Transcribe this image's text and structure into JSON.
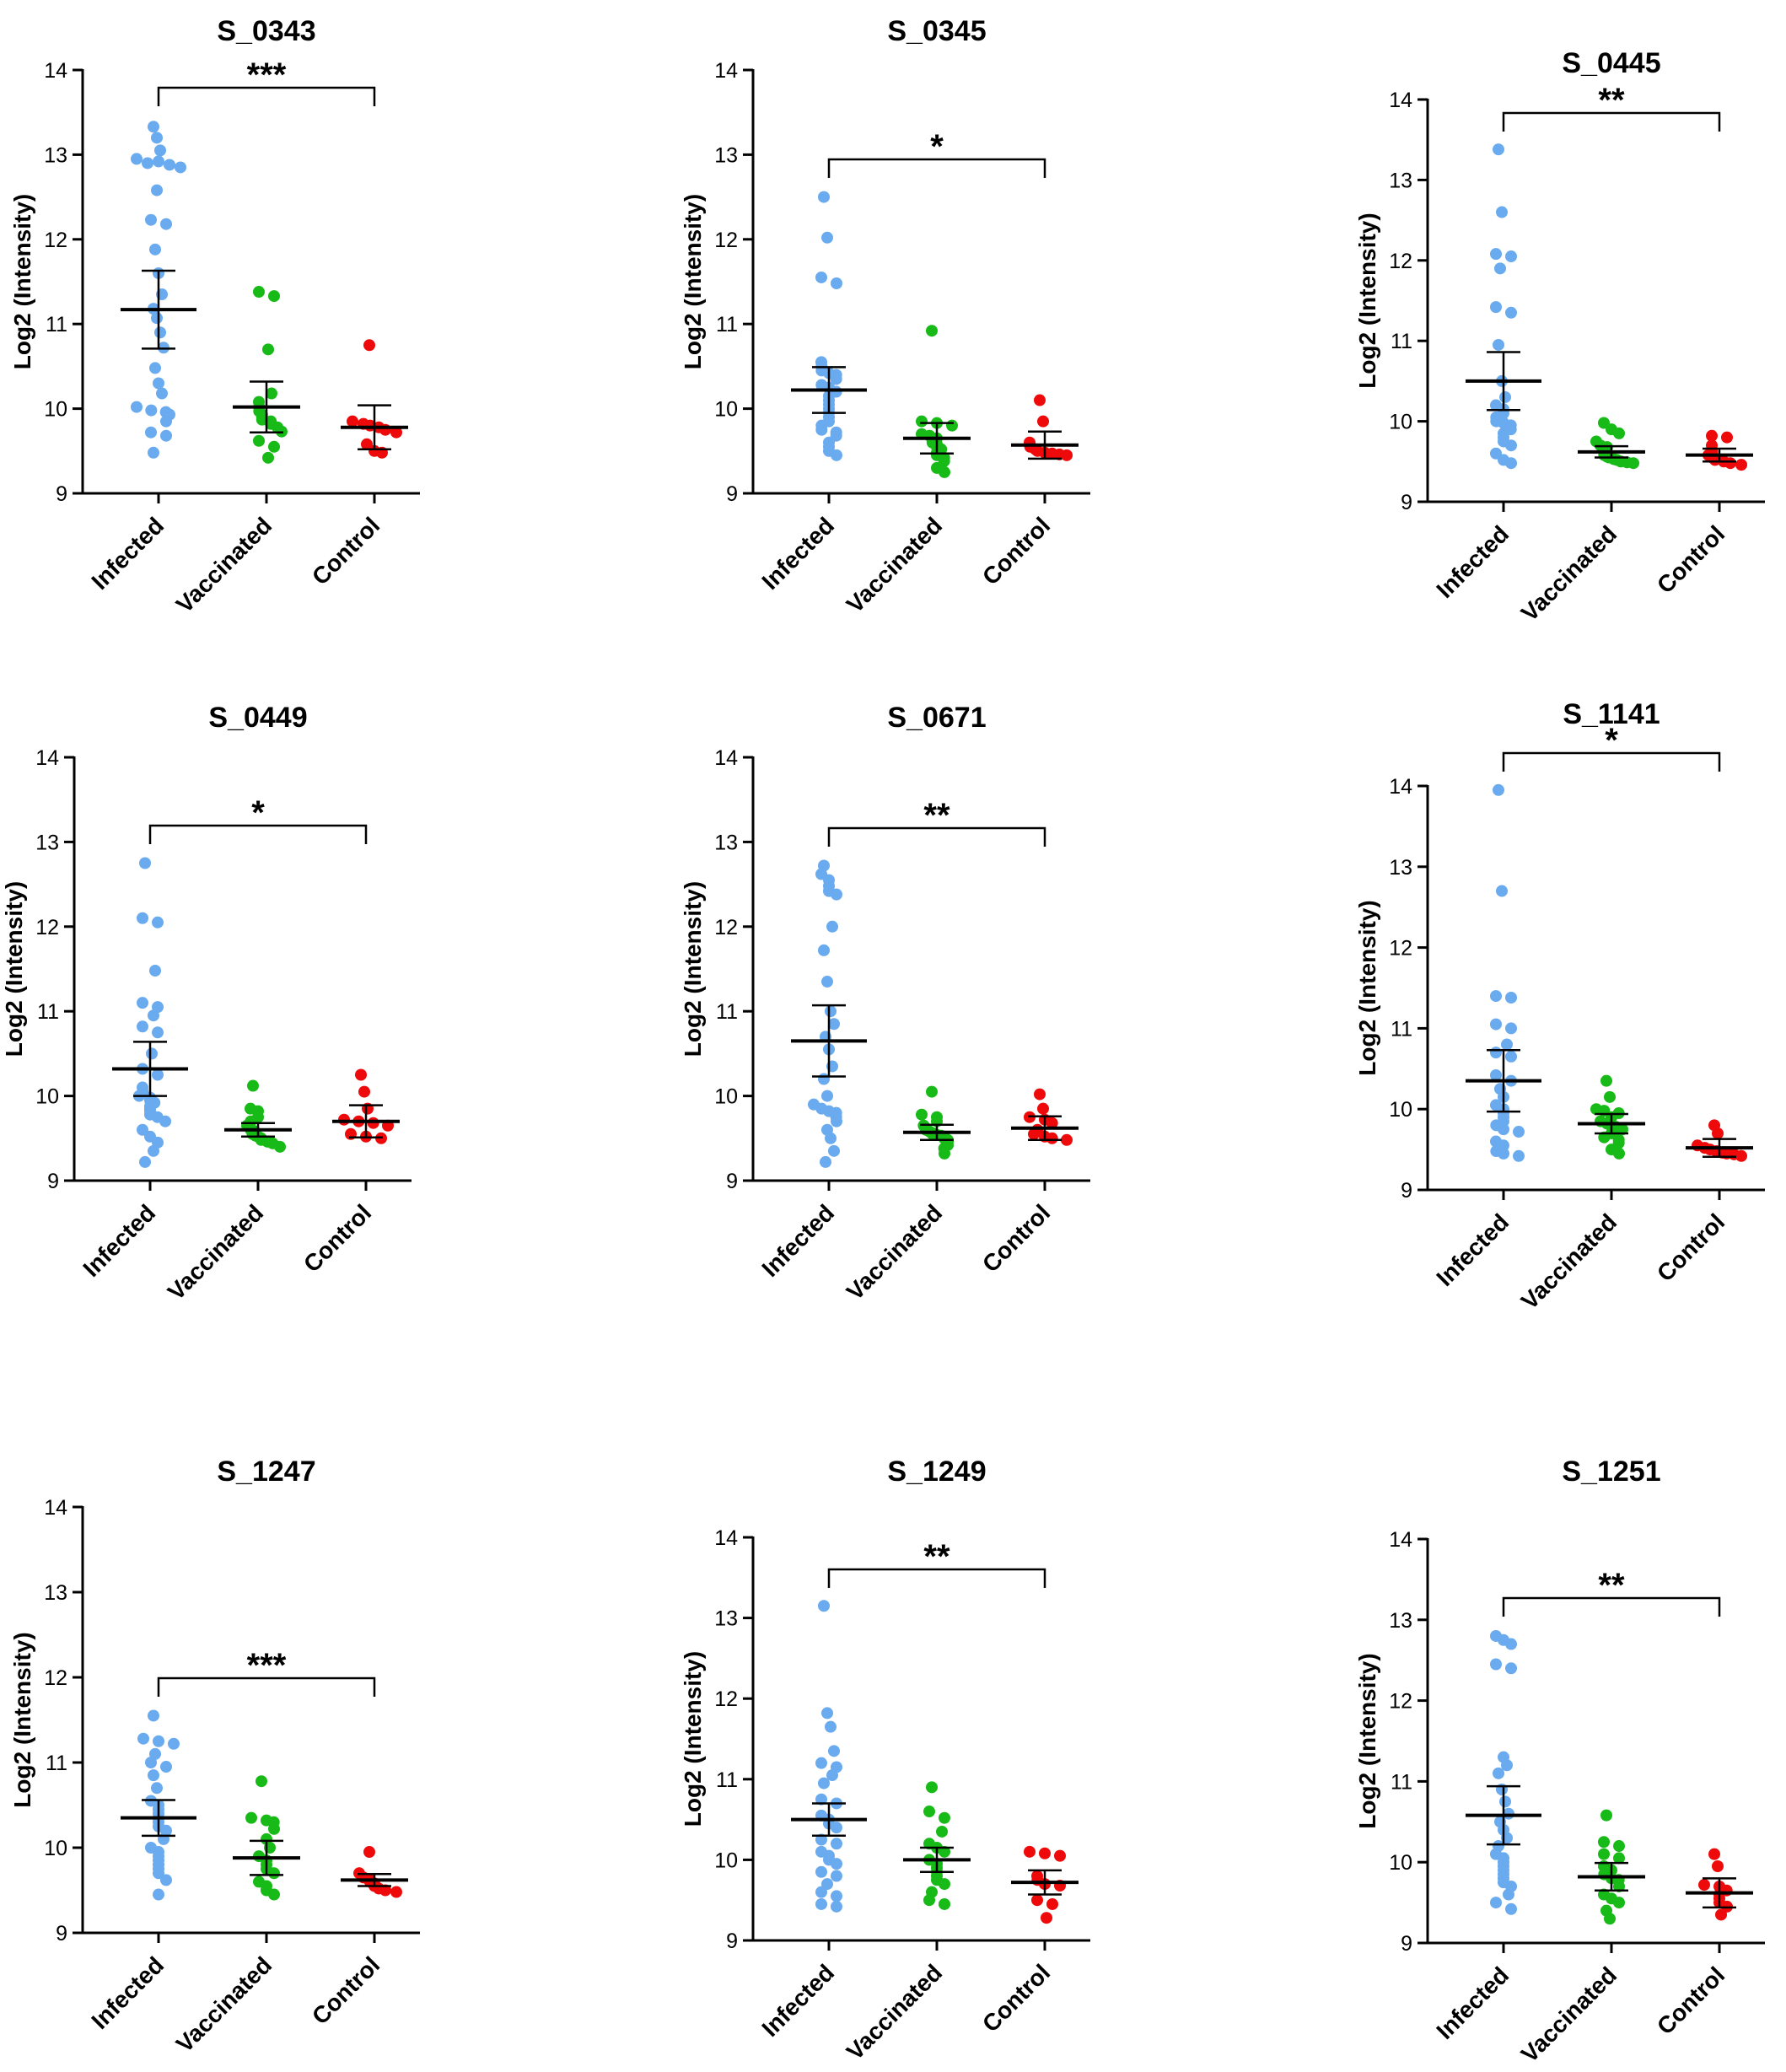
{
  "figure": {
    "colors": {
      "infected": "#6aaaee",
      "vaccinated": "#17ba17",
      "control": "#ee0a0a",
      "axis": "#000000"
    }
  },
  "chart_data": [
    {
      "type": "scatter",
      "title": "S_0343",
      "ylabel": "Log2 (Intensity)",
      "ylim": [
        9,
        14
      ],
      "yticks": [
        "9",
        "10",
        "11",
        "12",
        "13",
        "14"
      ],
      "categories": [
        "Infected",
        "Vaccinated",
        "Control"
      ],
      "significance": "***",
      "series": [
        {
          "name": "Infected",
          "mean": 11.17,
          "sem": 0.46,
          "values": [
            13.33,
            13.2,
            13.05,
            12.95,
            12.9,
            12.92,
            12.88,
            12.85,
            12.58,
            12.23,
            12.18,
            11.88,
            11.6,
            11.35,
            11.18,
            11.07,
            10.9,
            10.72,
            10.48,
            10.3,
            10.18,
            10.02,
            9.98,
            9.96,
            9.93,
            9.85,
            9.72,
            9.68,
            9.48
          ]
        },
        {
          "name": "Vaccinated",
          "mean": 10.02,
          "sem": 0.3,
          "values": [
            11.38,
            11.33,
            10.7,
            10.18,
            10.08,
            10.02,
            9.97,
            9.93,
            9.9,
            9.87,
            9.85,
            9.82,
            9.78,
            9.73,
            9.62,
            9.55,
            9.42
          ]
        },
        {
          "name": "Control",
          "mean": 9.78,
          "sem": 0.26,
          "values": [
            10.75,
            9.85,
            9.82,
            9.8,
            9.78,
            9.75,
            9.72,
            9.58,
            9.5,
            9.48
          ]
        }
      ]
    },
    {
      "type": "scatter",
      "title": "S_0345",
      "ylabel": "Log2 (Intensity)",
      "ylim": [
        9,
        14
      ],
      "yticks": [
        "9",
        "10",
        "11",
        "12",
        "13",
        "14"
      ],
      "categories": [
        "Infected",
        "Vaccinated",
        "Control"
      ],
      "significance": "*",
      "series": [
        {
          "name": "Infected",
          "mean": 10.22,
          "sem": 0.27,
          "values": [
            12.5,
            12.02,
            11.55,
            11.48,
            10.55,
            10.5,
            10.45,
            10.42,
            10.4,
            10.35,
            10.28,
            10.25,
            10.2,
            10.15,
            10.1,
            10.05,
            10.0,
            9.95,
            9.9,
            9.85,
            9.8,
            9.75,
            9.72,
            9.68,
            9.6,
            9.55,
            9.5,
            9.45
          ]
        },
        {
          "name": "Vaccinated",
          "mean": 9.65,
          "sem": 0.18,
          "values": [
            10.92,
            9.85,
            9.83,
            9.8,
            9.7,
            9.68,
            9.65,
            9.6,
            9.58,
            9.55,
            9.52,
            9.48,
            9.45,
            9.42,
            9.38,
            9.3,
            9.25
          ]
        },
        {
          "name": "Control",
          "mean": 9.57,
          "sem": 0.16,
          "values": [
            10.1,
            9.85,
            9.6,
            9.55,
            9.52,
            9.5,
            9.48,
            9.47,
            9.46,
            9.45
          ]
        }
      ]
    },
    {
      "type": "scatter",
      "title": "S_0445",
      "ylabel": "Log2 (Intensity)",
      "ylim": [
        9,
        14
      ],
      "yticks": [
        "9",
        "10",
        "11",
        "12",
        "13",
        "14"
      ],
      "categories": [
        "Infected",
        "Vaccinated",
        "Control"
      ],
      "significance": "**",
      "series": [
        {
          "name": "Infected",
          "mean": 10.5,
          "sem": 0.36,
          "values": [
            13.38,
            12.6,
            12.08,
            12.05,
            11.9,
            11.42,
            11.35,
            10.95,
            10.5,
            10.3,
            10.2,
            10.15,
            10.1,
            10.05,
            10.0,
            9.98,
            9.95,
            9.9,
            9.85,
            9.8,
            9.75,
            9.7,
            9.6,
            9.52,
            9.48
          ]
        },
        {
          "name": "Vaccinated",
          "mean": 9.62,
          "sem": 0.07,
          "values": [
            9.98,
            9.9,
            9.85,
            9.75,
            9.7,
            9.68,
            9.65,
            9.62,
            9.6,
            9.58,
            9.56,
            9.55,
            9.53,
            9.52,
            9.5,
            9.49,
            9.48
          ]
        },
        {
          "name": "Control",
          "mean": 9.58,
          "sem": 0.08,
          "values": [
            9.82,
            9.8,
            9.7,
            9.62,
            9.58,
            9.55,
            9.52,
            9.5,
            9.48,
            9.46
          ]
        }
      ]
    },
    {
      "type": "scatter",
      "title": "S_0449",
      "ylabel": "Log2 (Intensity)",
      "ylim": [
        9,
        14
      ],
      "yticks": [
        "9",
        "10",
        "11",
        "12",
        "13",
        "14"
      ],
      "categories": [
        "Infected",
        "Vaccinated",
        "Control"
      ],
      "significance": "*",
      "series": [
        {
          "name": "Infected",
          "mean": 10.32,
          "sem": 0.32,
          "values": [
            12.75,
            12.1,
            12.05,
            11.48,
            11.1,
            11.05,
            10.95,
            10.82,
            10.75,
            10.5,
            10.32,
            10.25,
            10.1,
            10.05,
            10.0,
            9.98,
            9.95,
            9.92,
            9.88,
            9.85,
            9.82,
            9.78,
            9.75,
            9.7,
            9.6,
            9.52,
            9.45,
            9.35,
            9.22
          ]
        },
        {
          "name": "Vaccinated",
          "mean": 9.6,
          "sem": 0.08,
          "values": [
            10.12,
            9.85,
            9.82,
            9.75,
            9.7,
            9.65,
            9.62,
            9.6,
            9.58,
            9.55,
            9.53,
            9.52,
            9.5,
            9.48,
            9.46,
            9.44,
            9.4
          ]
        },
        {
          "name": "Control",
          "mean": 9.7,
          "sem": 0.19,
          "values": [
            10.25,
            10.05,
            9.85,
            9.72,
            9.7,
            9.68,
            9.65,
            9.55,
            9.52,
            9.5
          ]
        }
      ]
    },
    {
      "type": "scatter",
      "title": "S_0671",
      "ylabel": "Log2 (Intensity)",
      "ylim": [
        9,
        14
      ],
      "yticks": [
        "9",
        "10",
        "11",
        "12",
        "13",
        "14"
      ],
      "categories": [
        "Infected",
        "Vaccinated",
        "Control"
      ],
      "significance": "**",
      "series": [
        {
          "name": "Infected",
          "mean": 10.65,
          "sem": 0.42,
          "values": [
            12.72,
            12.62,
            12.55,
            12.48,
            12.42,
            12.38,
            12.0,
            11.72,
            11.35,
            11.0,
            10.85,
            10.7,
            10.55,
            10.35,
            10.2,
            10.0,
            9.9,
            9.85,
            9.82,
            9.8,
            9.75,
            9.7,
            9.6,
            9.5,
            9.35,
            9.22
          ]
        },
        {
          "name": "Vaccinated",
          "mean": 9.57,
          "sem": 0.09,
          "values": [
            10.05,
            9.78,
            9.75,
            9.7,
            9.65,
            9.62,
            9.6,
            9.58,
            9.56,
            9.55,
            9.54,
            9.53,
            9.52,
            9.5,
            9.48,
            9.46,
            9.42,
            9.38,
            9.32
          ]
        },
        {
          "name": "Control",
          "mean": 9.62,
          "sem": 0.14,
          "values": [
            10.02,
            9.85,
            9.75,
            9.72,
            9.68,
            9.6,
            9.55,
            9.52,
            9.5,
            9.48
          ]
        }
      ]
    },
    {
      "type": "scatter",
      "title": "S_1141",
      "ylabel": "Log2 (Intensity)",
      "ylim": [
        9,
        14
      ],
      "yticks": [
        "9",
        "10",
        "11",
        "12",
        "13",
        "14"
      ],
      "categories": [
        "Infected",
        "Vaccinated",
        "Control"
      ],
      "significance": "*",
      "series": [
        {
          "name": "Infected",
          "mean": 10.35,
          "sem": 0.38,
          "values": [
            13.95,
            12.7,
            11.4,
            11.38,
            11.05,
            11.0,
            10.8,
            10.7,
            10.65,
            10.42,
            10.35,
            10.25,
            10.15,
            10.05,
            10.0,
            9.95,
            9.9,
            9.85,
            9.8,
            9.75,
            9.72,
            9.6,
            9.55,
            9.48,
            9.45,
            9.42
          ]
        },
        {
          "name": "Vaccinated",
          "mean": 9.82,
          "sem": 0.12,
          "values": [
            10.35,
            10.15,
            10.0,
            9.98,
            9.95,
            9.9,
            9.85,
            9.82,
            9.8,
            9.78,
            9.75,
            9.7,
            9.65,
            9.62,
            9.58,
            9.5,
            9.45
          ]
        },
        {
          "name": "Control",
          "mean": 9.52,
          "sem": 0.11,
          "values": [
            9.8,
            9.7,
            9.55,
            9.52,
            9.5,
            9.48,
            9.46,
            9.45,
            9.44,
            9.42
          ]
        }
      ]
    },
    {
      "type": "scatter",
      "title": "S_1247",
      "ylabel": "Log2 (Intensity)",
      "ylim": [
        9,
        14
      ],
      "yticks": [
        "9",
        "10",
        "11",
        "12",
        "13",
        "14"
      ],
      "categories": [
        "Infected",
        "Vaccinated",
        "Control"
      ],
      "significance": "***",
      "series": [
        {
          "name": "Infected",
          "mean": 10.35,
          "sem": 0.21,
          "values": [
            11.55,
            11.28,
            11.25,
            11.22,
            11.1,
            11.0,
            10.95,
            10.85,
            10.7,
            10.55,
            10.5,
            10.45,
            10.4,
            10.35,
            10.3,
            10.25,
            10.2,
            10.1,
            10.0,
            9.95,
            9.9,
            9.85,
            9.8,
            9.75,
            9.7,
            9.62,
            9.45
          ]
        },
        {
          "name": "Vaccinated",
          "mean": 9.88,
          "sem": 0.2,
          "values": [
            10.78,
            10.35,
            10.32,
            10.3,
            10.22,
            10.1,
            10.0,
            9.9,
            9.85,
            9.8,
            9.75,
            9.7,
            9.6,
            9.55,
            9.5,
            9.45
          ]
        },
        {
          "name": "Control",
          "mean": 9.62,
          "sem": 0.07,
          "values": [
            9.95,
            9.7,
            9.65,
            9.62,
            9.6,
            9.58,
            9.55,
            9.52,
            9.5,
            9.48
          ]
        }
      ]
    },
    {
      "type": "scatter",
      "title": "S_1249",
      "ylabel": "Log2 (Intensity)",
      "ylim": [
        9,
        14
      ],
      "yticks": [
        "9",
        "10",
        "11",
        "12",
        "13",
        "14"
      ],
      "categories": [
        "Infected",
        "Vaccinated",
        "Control"
      ],
      "significance": "**",
      "series": [
        {
          "name": "Infected",
          "mean": 10.5,
          "sem": 0.2,
          "values": [
            13.15,
            11.82,
            11.65,
            11.35,
            11.2,
            11.15,
            11.05,
            10.95,
            10.75,
            10.7,
            10.55,
            10.5,
            10.45,
            10.4,
            10.25,
            10.2,
            10.1,
            10.05,
            10.0,
            9.95,
            9.85,
            9.8,
            9.7,
            9.6,
            9.55,
            9.45,
            9.42
          ]
        },
        {
          "name": "Vaccinated",
          "mean": 10.0,
          "sem": 0.15,
          "values": [
            10.9,
            10.6,
            10.52,
            10.35,
            10.2,
            10.15,
            10.1,
            10.0,
            9.95,
            9.9,
            9.85,
            9.8,
            9.75,
            9.7,
            9.6,
            9.5,
            9.45
          ]
        },
        {
          "name": "Control",
          "mean": 9.72,
          "sem": 0.15,
          "values": [
            10.1,
            10.08,
            10.05,
            9.8,
            9.75,
            9.7,
            9.68,
            9.5,
            9.45,
            9.28
          ]
        }
      ]
    },
    {
      "type": "scatter",
      "title": "S_1251",
      "ylabel": "Log2 (Intensity)",
      "ylim": [
        9,
        14
      ],
      "yticks": [
        "9",
        "10",
        "11",
        "12",
        "13",
        "14"
      ],
      "categories": [
        "Infected",
        "Vaccinated",
        "Control"
      ],
      "significance": "**",
      "series": [
        {
          "name": "Infected",
          "mean": 10.58,
          "sem": 0.36,
          "values": [
            12.8,
            12.75,
            12.7,
            12.45,
            12.4,
            11.3,
            11.2,
            11.1,
            10.9,
            10.75,
            10.6,
            10.5,
            10.4,
            10.3,
            10.2,
            10.1,
            10.05,
            10.0,
            9.95,
            9.9,
            9.85,
            9.8,
            9.75,
            9.7,
            9.6,
            9.5,
            9.42
          ]
        },
        {
          "name": "Vaccinated",
          "mean": 9.82,
          "sem": 0.17,
          "values": [
            10.58,
            10.25,
            10.2,
            10.1,
            10.05,
            9.95,
            9.9,
            9.85,
            9.8,
            9.78,
            9.7,
            9.6,
            9.55,
            9.5,
            9.4,
            9.3
          ]
        },
        {
          "name": "Control",
          "mean": 9.62,
          "sem": 0.18,
          "values": [
            10.1,
            9.95,
            9.72,
            9.7,
            9.65,
            9.6,
            9.55,
            9.5,
            9.45,
            9.35
          ]
        }
      ]
    }
  ]
}
